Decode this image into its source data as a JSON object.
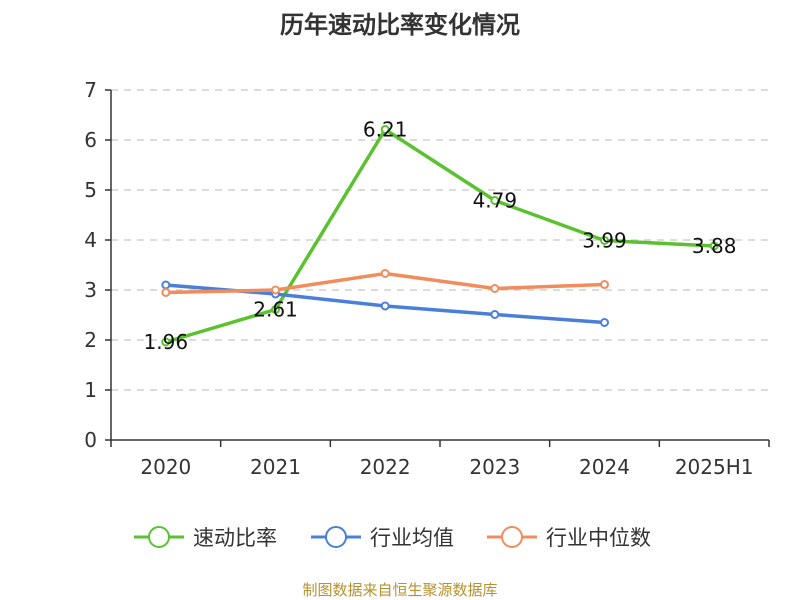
{
  "chart_data": {
    "type": "line",
    "title": "历年速动比率变化情况",
    "categories": [
      "2020",
      "2021",
      "2022",
      "2023",
      "2024",
      "2025H1"
    ],
    "ylim": [
      0,
      7
    ],
    "yticks": [
      "0",
      "1",
      "2",
      "3",
      "4",
      "5",
      "6",
      "7"
    ],
    "grid": true,
    "legend_position": "bottom",
    "series": [
      {
        "name": "速动比率",
        "color": "#5bc22f",
        "values": [
          1.96,
          2.61,
          6.21,
          4.79,
          3.99,
          3.88
        ],
        "labels": [
          "1.96",
          "2.61",
          "6.21",
          "4.79",
          "3.99",
          "3.88"
        ]
      },
      {
        "name": "行业均值",
        "color": "#4a7fd9",
        "values": [
          3.1,
          2.92,
          2.68,
          2.51,
          2.35,
          null
        ]
      },
      {
        "name": "行业中位数",
        "color": "#f28c5c",
        "values": [
          2.95,
          3.0,
          3.33,
          3.03,
          3.11,
          null
        ]
      }
    ]
  },
  "source_text": "制图数据来自恒生聚源数据库"
}
